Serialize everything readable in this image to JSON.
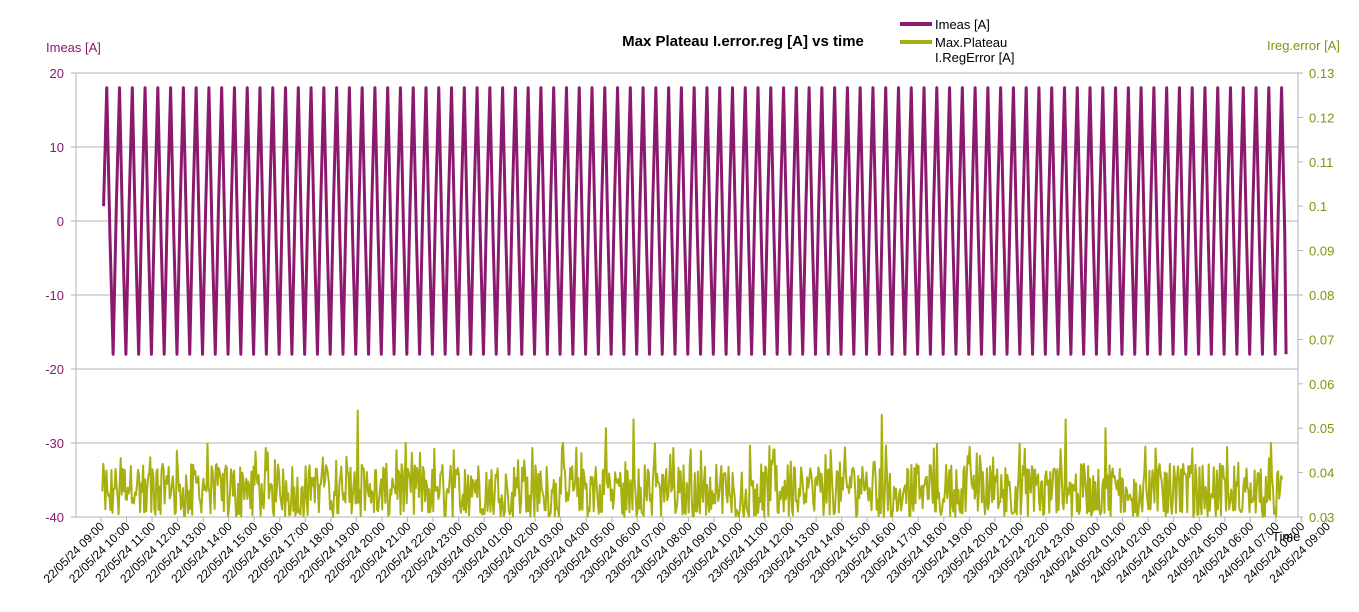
{
  "chart_data": {
    "type": "line",
    "title": "Max Plateau I.error.reg [A] vs time",
    "xlabel": "Time",
    "ylabel_left": "Imeas [A]",
    "ylabel_right": "Ireg.error [A]",
    "ylim_left": [
      -40,
      20
    ],
    "yticks_left": [
      "20",
      "10",
      "0",
      "-10",
      "-20",
      "-30",
      "-40"
    ],
    "ylim_right": [
      0.03,
      0.13
    ],
    "yticks_right": [
      "0.13",
      "0.12",
      "0.11",
      "0.1",
      "0.09",
      "0.08",
      "0.07",
      "0.06",
      "0.05",
      "0.04",
      "0.03"
    ],
    "x_ticks": [
      "22/05/24 09:00",
      "22/05/24 10:00",
      "22/05/24 11:00",
      "22/05/24 12:00",
      "22/05/24 13:00",
      "22/05/24 14:00",
      "22/05/24 15:00",
      "22/05/24 16:00",
      "22/05/24 17:00",
      "22/05/24 18:00",
      "22/05/24 19:00",
      "22/05/24 20:00",
      "22/05/24 21:00",
      "22/05/24 22:00",
      "22/05/24 23:00",
      "23/05/24 00:00",
      "23/05/24 01:00",
      "23/05/24 02:00",
      "23/05/24 03:00",
      "23/05/24 04:00",
      "23/05/24 05:00",
      "23/05/24 06:00",
      "23/05/24 07:00",
      "23/05/24 08:00",
      "23/05/24 09:00",
      "23/05/24 10:00",
      "23/05/24 11:00",
      "23/05/24 12:00",
      "23/05/24 13:00",
      "23/05/24 14:00",
      "23/05/24 15:00",
      "23/05/24 16:00",
      "23/05/24 17:00",
      "23/05/24 18:00",
      "23/05/24 19:00",
      "23/05/24 20:00",
      "23/05/24 21:00",
      "23/05/24 22:00",
      "23/05/24 23:00",
      "24/05/24 00:00",
      "24/05/24 01:00",
      "24/05/24 02:00",
      "24/05/24 03:00",
      "24/05/24 04:00",
      "24/05/24 05:00",
      "24/05/24 06:00",
      "24/05/24 07:00",
      "24/05/24 08:00",
      "24/05/24 09:00"
    ],
    "grid": true,
    "legend_position": "top-right",
    "series": [
      {
        "name": "Imeas [A]",
        "axis": "left",
        "color": "#8b1a6e",
        "cycle_hours": 0.5,
        "start_hours": 0.1,
        "end_hours": 46.4,
        "pattern_values": [
          2,
          18,
          -2,
          -18
        ]
      },
      {
        "name": "Max.Plateau I.RegError [A]",
        "axis": "right",
        "color": "#a8b010",
        "baseline": 0.03,
        "typical_range": [
          0.03,
          0.042
        ],
        "peak_values": [
          {
            "hours": 10.0,
            "value": 0.054
          },
          {
            "hours": 19.7,
            "value": 0.05
          },
          {
            "hours": 20.8,
            "value": 0.052
          },
          {
            "hours": 30.5,
            "value": 0.053
          },
          {
            "hours": 37.7,
            "value": 0.052
          },
          {
            "hours": 39.3,
            "value": 0.05
          }
        ]
      }
    ]
  }
}
